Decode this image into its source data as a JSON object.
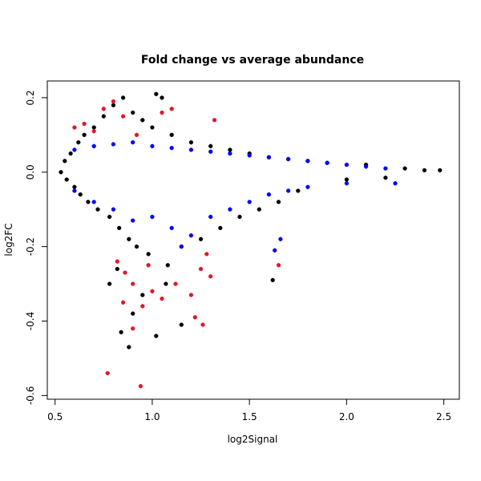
{
  "chart_data": {
    "type": "scatter",
    "title": "Fold change vs average abundance",
    "xlabel": "log2Signal",
    "ylabel": "log2FC",
    "xlim": [
      0.46,
      2.58
    ],
    "ylim": [
      -0.61,
      0.245
    ],
    "x_ticks": [
      0.5,
      1.0,
      1.5,
      2.0,
      2.5
    ],
    "x_tick_labels": [
      "0.5",
      "1.0",
      "1.5",
      "2.0",
      "2.5"
    ],
    "y_ticks": [
      -0.6,
      -0.4,
      -0.2,
      0.0,
      0.2
    ],
    "y_tick_labels": [
      "-0.6",
      "-0.4",
      "-0.2",
      "0.0",
      "0.2"
    ],
    "grid": false,
    "legend": "none",
    "colors": {
      "black": "#000000",
      "blue": "#0000ff",
      "red": "#e3162b"
    },
    "series": [
      {
        "color": "black",
        "points": [
          [
            0.53,
            0.0
          ],
          [
            0.55,
            0.03
          ],
          [
            0.56,
            -0.02
          ],
          [
            0.58,
            0.05
          ],
          [
            0.6,
            -0.04
          ],
          [
            0.62,
            0.08
          ],
          [
            0.63,
            -0.06
          ],
          [
            0.65,
            0.1
          ],
          [
            0.67,
            -0.08
          ],
          [
            0.7,
            0.12
          ],
          [
            0.72,
            -0.1
          ],
          [
            0.75,
            0.15
          ],
          [
            0.78,
            -0.12
          ],
          [
            0.8,
            0.18
          ],
          [
            0.83,
            -0.15
          ],
          [
            0.85,
            0.2
          ],
          [
            0.88,
            -0.18
          ],
          [
            0.9,
            0.16
          ],
          [
            0.92,
            -0.2
          ],
          [
            0.95,
            0.14
          ],
          [
            0.98,
            -0.22
          ],
          [
            1.0,
            0.12
          ],
          [
            1.02,
            0.21
          ],
          [
            1.05,
            0.2
          ],
          [
            1.08,
            -0.25
          ],
          [
            1.1,
            0.1
          ],
          [
            1.15,
            -0.2
          ],
          [
            1.2,
            0.08
          ],
          [
            1.25,
            -0.18
          ],
          [
            1.3,
            0.07
          ],
          [
            1.35,
            -0.15
          ],
          [
            1.4,
            0.06
          ],
          [
            1.45,
            -0.12
          ],
          [
            1.5,
            0.05
          ],
          [
            1.55,
            -0.1
          ],
          [
            1.6,
            0.04
          ],
          [
            1.65,
            -0.08
          ],
          [
            1.7,
            0.035
          ],
          [
            1.75,
            -0.05
          ],
          [
            1.8,
            0.03
          ],
          [
            1.9,
            0.025
          ],
          [
            2.0,
            -0.02
          ],
          [
            2.1,
            0.02
          ],
          [
            2.2,
            -0.015
          ],
          [
            2.3,
            0.01
          ],
          [
            2.4,
            0.005
          ],
          [
            2.48,
            0.005
          ],
          [
            0.84,
            -0.43
          ],
          [
            0.88,
            -0.47
          ],
          [
            1.02,
            -0.44
          ],
          [
            0.9,
            -0.38
          ],
          [
            0.95,
            -0.33
          ],
          [
            0.78,
            -0.3
          ],
          [
            1.62,
            -0.29
          ],
          [
            1.07,
            -0.3
          ],
          [
            0.82,
            -0.26
          ],
          [
            1.15,
            -0.41
          ]
        ]
      },
      {
        "color": "blue",
        "points": [
          [
            0.6,
            0.06
          ],
          [
            0.7,
            0.07
          ],
          [
            0.8,
            0.075
          ],
          [
            0.9,
            0.08
          ],
          [
            1.0,
            0.07
          ],
          [
            1.1,
            0.065
          ],
          [
            1.2,
            0.06
          ],
          [
            1.3,
            0.055
          ],
          [
            1.4,
            0.05
          ],
          [
            1.5,
            0.045
          ],
          [
            1.6,
            0.04
          ],
          [
            1.7,
            0.035
          ],
          [
            1.8,
            0.03
          ],
          [
            1.9,
            0.025
          ],
          [
            2.0,
            0.02
          ],
          [
            2.1,
            0.015
          ],
          [
            2.2,
            0.01
          ],
          [
            0.6,
            -0.05
          ],
          [
            0.7,
            -0.08
          ],
          [
            0.8,
            -0.1
          ],
          [
            0.9,
            -0.13
          ],
          [
            1.0,
            -0.12
          ],
          [
            1.1,
            -0.15
          ],
          [
            1.2,
            -0.17
          ],
          [
            1.3,
            -0.12
          ],
          [
            1.4,
            -0.1
          ],
          [
            1.5,
            -0.08
          ],
          [
            1.6,
            -0.06
          ],
          [
            1.7,
            -0.05
          ],
          [
            1.8,
            -0.04
          ],
          [
            2.0,
            -0.03
          ],
          [
            2.25,
            -0.03
          ],
          [
            1.66,
            -0.18
          ],
          [
            1.63,
            -0.21
          ],
          [
            1.15,
            -0.2
          ]
        ]
      },
      {
        "color": "red",
        "points": [
          [
            0.6,
            0.12
          ],
          [
            0.65,
            0.13
          ],
          [
            0.7,
            0.11
          ],
          [
            0.75,
            0.17
          ],
          [
            0.8,
            0.19
          ],
          [
            0.85,
            0.15
          ],
          [
            0.92,
            0.1
          ],
          [
            1.05,
            0.16
          ],
          [
            1.1,
            0.17
          ],
          [
            1.32,
            0.14
          ],
          [
            0.82,
            -0.24
          ],
          [
            0.86,
            -0.27
          ],
          [
            0.9,
            -0.3
          ],
          [
            0.85,
            -0.35
          ],
          [
            0.95,
            -0.36
          ],
          [
            1.0,
            -0.32
          ],
          [
            1.05,
            -0.34
          ],
          [
            1.12,
            -0.3
          ],
          [
            1.2,
            -0.33
          ],
          [
            1.25,
            -0.26
          ],
          [
            1.28,
            -0.22
          ],
          [
            1.3,
            -0.28
          ],
          [
            1.26,
            -0.41
          ],
          [
            1.22,
            -0.39
          ],
          [
            0.9,
            -0.42
          ],
          [
            0.77,
            -0.54
          ],
          [
            0.94,
            -0.575
          ],
          [
            1.65,
            -0.25
          ],
          [
            0.98,
            -0.25
          ]
        ]
      }
    ]
  }
}
